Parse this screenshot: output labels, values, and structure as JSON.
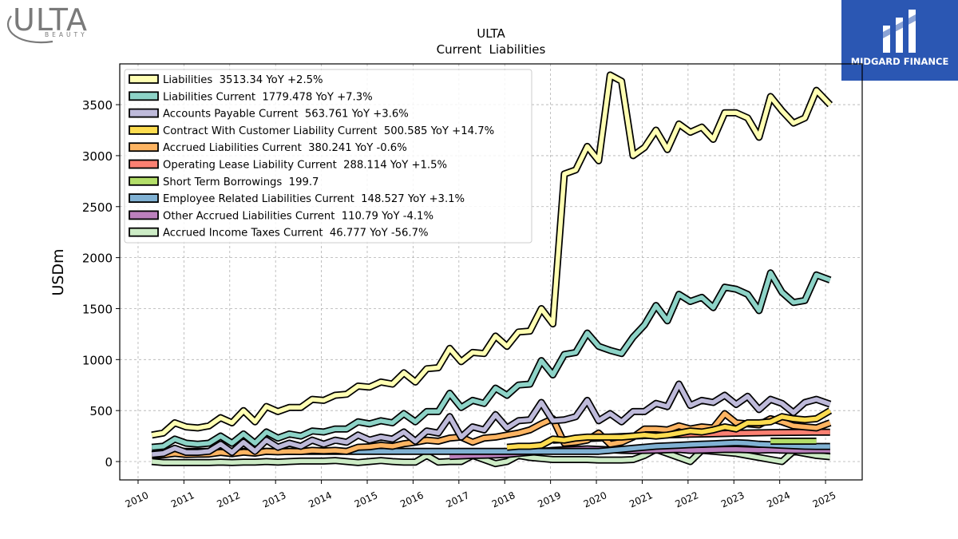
{
  "logos": {
    "company_name": "ULTA",
    "company_sub": "BEAUTY",
    "brand_name": "MIDGARD FINANCE"
  },
  "colors": {
    "background": "#ffffff",
    "grid": "#b0b0b0",
    "brand_blue": "#2b57b3"
  },
  "chart_data": {
    "type": "line",
    "title": "ULTA",
    "subtitle": "Current  Liabilities",
    "ylabel": "USDm",
    "xlabel": "",
    "ylim": [
      -180,
      3900
    ],
    "xlim": [
      2009.6,
      2025.8
    ],
    "yticks": [
      0,
      500,
      1000,
      1500,
      2000,
      2500,
      3000,
      3500
    ],
    "xticks": [
      2010,
      2011,
      2012,
      2013,
      2014,
      2015,
      2016,
      2017,
      2018,
      2019,
      2020,
      2021,
      2022,
      2023,
      2024,
      2025
    ],
    "grid": true,
    "legend_position": "top-left",
    "series": [
      {
        "name": "Liabilities  3513.34 YoY +2.5%",
        "color": "#ffffb3",
        "x": [
          2010.3,
          2010.55,
          2010.8,
          2011.05,
          2011.3,
          2011.55,
          2011.8,
          2012.05,
          2012.3,
          2012.55,
          2012.8,
          2013.05,
          2013.3,
          2013.55,
          2013.8,
          2014.05,
          2014.3,
          2014.55,
          2014.8,
          2015.05,
          2015.3,
          2015.55,
          2015.8,
          2016.05,
          2016.3,
          2016.55,
          2016.8,
          2017.05,
          2017.3,
          2017.55,
          2017.8,
          2018.05,
          2018.3,
          2018.55,
          2018.8,
          2019.05,
          2019.3,
          2019.55,
          2019.8,
          2020.05,
          2020.3,
          2020.55,
          2020.8,
          2021.05,
          2021.3,
          2021.55,
          2021.8,
          2022.05,
          2022.3,
          2022.55,
          2022.8,
          2023.05,
          2023.3,
          2023.55,
          2023.8,
          2024.05,
          2024.3,
          2024.55,
          2024.8,
          2025.1
        ],
        "values": [
          260,
          280,
          380,
          340,
          330,
          350,
          430,
          380,
          500,
          390,
          540,
          490,
          530,
          530,
          610,
          600,
          650,
          660,
          740,
          730,
          780,
          760,
          870,
          780,
          910,
          920,
          1110,
          980,
          1070,
          1060,
          1230,
          1130,
          1270,
          1280,
          1500,
          1350,
          2820,
          2860,
          3090,
          2950,
          3790,
          3730,
          3000,
          3080,
          3250,
          3060,
          3310,
          3230,
          3280,
          3160,
          3420,
          3420,
          3370,
          3180,
          3580,
          3440,
          3320,
          3370,
          3640,
          3500
        ]
      },
      {
        "name": "Liabilities Current  1779.478 YoY +7.3%",
        "color": "#8dd3c7",
        "x": [
          2010.3,
          2010.55,
          2010.8,
          2011.05,
          2011.3,
          2011.55,
          2011.8,
          2012.05,
          2012.3,
          2012.55,
          2012.8,
          2013.05,
          2013.3,
          2013.55,
          2013.8,
          2014.05,
          2014.3,
          2014.55,
          2014.8,
          2015.05,
          2015.3,
          2015.55,
          2015.8,
          2016.05,
          2016.3,
          2016.55,
          2016.8,
          2017.05,
          2017.3,
          2017.55,
          2017.8,
          2018.05,
          2018.3,
          2018.55,
          2018.8,
          2019.05,
          2019.3,
          2019.55,
          2019.8,
          2020.05,
          2020.3,
          2020.55,
          2020.8,
          2021.05,
          2021.3,
          2021.55,
          2021.8,
          2022.05,
          2022.3,
          2022.55,
          2022.8,
          2023.05,
          2023.3,
          2023.55,
          2023.8,
          2024.05,
          2024.3,
          2024.55,
          2024.8,
          2025.1
        ],
        "values": [
          140,
          150,
          220,
          180,
          170,
          180,
          250,
          180,
          270,
          180,
          290,
          230,
          270,
          250,
          300,
          290,
          320,
          320,
          390,
          370,
          400,
          380,
          470,
          390,
          490,
          490,
          670,
          530,
          600,
          570,
          720,
          650,
          750,
          760,
          990,
          850,
          1050,
          1070,
          1260,
          1130,
          1090,
          1060,
          1220,
          1340,
          1530,
          1380,
          1640,
          1570,
          1610,
          1510,
          1710,
          1690,
          1640,
          1480,
          1850,
          1660,
          1560,
          1580,
          1830,
          1780
        ]
      },
      {
        "name": "Accounts Payable Current  563.761 YoY +3.6%",
        "color": "#bebada",
        "x": [
          2010.3,
          2010.55,
          2010.8,
          2011.05,
          2011.3,
          2011.55,
          2011.8,
          2012.05,
          2012.3,
          2012.55,
          2012.8,
          2013.05,
          2013.3,
          2013.55,
          2013.8,
          2014.05,
          2014.3,
          2014.55,
          2014.8,
          2015.05,
          2015.3,
          2015.55,
          2015.8,
          2016.05,
          2016.3,
          2016.55,
          2016.8,
          2017.05,
          2017.3,
          2017.55,
          2017.8,
          2018.05,
          2018.3,
          2018.55,
          2018.8,
          2019.05,
          2019.3,
          2019.55,
          2019.8,
          2020.05,
          2020.3,
          2020.55,
          2020.8,
          2021.05,
          2021.3,
          2021.55,
          2021.8,
          2022.05,
          2022.3,
          2022.55,
          2022.8,
          2023.05,
          2023.3,
          2023.55,
          2023.8,
          2024.05,
          2024.3,
          2024.55,
          2024.8,
          2025.1
        ],
        "values": [
          70,
          80,
          130,
          90,
          90,
          100,
          170,
          90,
          190,
          100,
          210,
          140,
          180,
          150,
          210,
          170,
          210,
          190,
          260,
          210,
          240,
          220,
          290,
          200,
          300,
          280,
          440,
          240,
          340,
          310,
          460,
          330,
          400,
          410,
          580,
          400,
          410,
          440,
          600,
          400,
          470,
          390,
          490,
          490,
          570,
          540,
          760,
          550,
          600,
          580,
          650,
          560,
          640,
          510,
          610,
          570,
          480,
          580,
          610,
          563
        ]
      },
      {
        "name": "Contract With Customer Liability Current  500.585 YoY +14.7%",
        "color": "#fddc50",
        "x": [
          2018.05,
          2018.3,
          2018.55,
          2018.8,
          2019.05,
          2019.3,
          2019.55,
          2019.8,
          2020.05,
          2020.3,
          2020.55,
          2020.8,
          2021.05,
          2021.3,
          2021.55,
          2021.8,
          2022.05,
          2022.3,
          2022.55,
          2022.8,
          2023.05,
          2023.3,
          2023.55,
          2023.8,
          2024.05,
          2024.3,
          2024.55,
          2024.8,
          2025.1
        ],
        "values": [
          140,
          150,
          150,
          160,
          220,
          210,
          230,
          240,
          240,
          240,
          240,
          250,
          260,
          250,
          260,
          280,
          300,
          290,
          310,
          340,
          320,
          380,
          380,
          390,
          440,
          420,
          410,
          420,
          500
        ]
      },
      {
        "name": "Accrued Liabilities Current  380.241 YoY -0.6%",
        "color": "#fdb462",
        "x": [
          2010.3,
          2010.55,
          2010.8,
          2011.05,
          2011.3,
          2011.55,
          2011.8,
          2012.05,
          2012.3,
          2012.55,
          2012.8,
          2013.05,
          2013.3,
          2013.55,
          2013.8,
          2014.05,
          2014.3,
          2014.55,
          2014.8,
          2015.05,
          2015.3,
          2015.55,
          2015.8,
          2016.05,
          2016.3,
          2016.55,
          2016.8,
          2017.05,
          2017.3,
          2017.55,
          2017.8,
          2018.05,
          2018.3,
          2018.55,
          2018.8,
          2019.05,
          2019.3,
          2019.55,
          2019.8,
          2020.05,
          2020.3,
          2020.55,
          2020.8,
          2021.05,
          2021.3,
          2021.55,
          2021.8,
          2022.05,
          2022.3,
          2022.55,
          2022.8,
          2023.05,
          2023.3,
          2023.55,
          2023.8,
          2024.05,
          2024.3,
          2024.55,
          2024.8,
          2025.1
        ],
        "values": [
          60,
          65,
          80,
          70,
          72,
          74,
          90,
          78,
          92,
          82,
          100,
          95,
          100,
          98,
          110,
          105,
          110,
          100,
          140,
          145,
          160,
          150,
          175,
          190,
          210,
          200,
          230,
          240,
          190,
          230,
          240,
          260,
          280,
          310,
          370,
          420,
          180,
          190,
          210,
          280,
          170,
          190,
          240,
          320,
          320,
          310,
          350,
          320,
          340,
          330,
          470,
          380,
          370,
          360,
          420,
          390,
          350,
          340,
          330,
          380
        ]
      },
      {
        "name": "Operating Lease Liability Current  288.114 YoY +1.5%",
        "color": "#fb8072",
        "x": [
          2019.05,
          2019.3,
          2019.55,
          2019.8,
          2020.05,
          2020.3,
          2020.55,
          2020.8,
          2021.05,
          2021.3,
          2021.55,
          2021.8,
          2022.05,
          2022.3,
          2022.55,
          2022.8,
          2023.05,
          2023.3,
          2023.55,
          2023.8,
          2024.05,
          2024.3,
          2024.55,
          2024.8,
          2025.1
        ],
        "values": [
          210,
          215,
          220,
          225,
          230,
          240,
          245,
          250,
          255,
          260,
          262,
          265,
          268,
          270,
          272,
          275,
          278,
          280,
          282,
          284,
          285,
          286,
          287,
          288,
          288
        ]
      },
      {
        "name": "Short Term Borrowings  199.7",
        "color": "#b3de69",
        "x": [
          2023.8,
          2024.05,
          2024.3,
          2024.55,
          2024.8
        ],
        "values": [
          200,
          200,
          200,
          200,
          200
        ]
      },
      {
        "name": "Employee Related Liabilities Current  148.527 YoY +3.1%",
        "color": "#80b1d3",
        "x": [
          2010.3,
          2010.55,
          2010.8,
          2011.05,
          2011.3,
          2011.55,
          2011.8,
          2012.05,
          2012.3,
          2012.55,
          2012.8,
          2013.05,
          2013.3,
          2013.55,
          2013.8,
          2014.05,
          2014.3,
          2014.55,
          2014.8,
          2015.05,
          2015.3,
          2015.55,
          2015.8,
          2016.05,
          2016.3,
          2016.55,
          2016.8,
          2017.05,
          2017.3,
          2017.55,
          2017.8,
          2018.05,
          2018.3,
          2018.55,
          2018.8,
          2019.05,
          2019.3,
          2019.55,
          2019.8,
          2020.05,
          2020.3,
          2020.55,
          2020.8,
          2021.05,
          2021.3,
          2021.55,
          2021.8,
          2022.05,
          2022.3,
          2022.55,
          2022.8,
          2023.05,
          2023.3,
          2023.55,
          2023.8,
          2024.05,
          2024.3,
          2024.55,
          2024.8,
          2025.1
        ],
        "values": [
          100,
          100,
          100,
          100,
          100,
          100,
          100,
          100,
          100,
          100,
          100,
          100,
          100,
          100,
          100,
          100,
          100,
          100,
          100,
          100,
          100,
          100,
          100,
          100,
          100,
          100,
          100,
          100,
          100,
          100,
          100,
          100,
          100,
          100,
          100,
          100,
          100,
          100,
          100,
          100,
          110,
          120,
          130,
          140,
          150,
          155,
          160,
          165,
          170,
          175,
          180,
          185,
          180,
          170,
          165,
          160,
          155,
          150,
          148,
          148
        ]
      },
      {
        "name": "Other Accrued Liabilities Current  110.79 YoY -4.1%",
        "color": "#bc80bd",
        "x": [
          2016.8,
          2017.05,
          2017.3,
          2017.55,
          2017.8,
          2018.05,
          2018.3,
          2018.55,
          2018.8,
          2019.05,
          2019.3,
          2019.55,
          2019.8,
          2020.05,
          2020.3,
          2020.55,
          2020.8,
          2021.05,
          2021.3,
          2021.55,
          2021.8,
          2022.05,
          2022.3,
          2022.55,
          2022.8,
          2023.05,
          2023.3,
          2023.55,
          2023.8,
          2024.05,
          2024.3,
          2024.55,
          2024.8,
          2025.1
        ],
        "values": [
          50,
          55,
          60,
          62,
          65,
          70,
          80,
          90,
          100,
          110,
          115,
          120,
          125,
          120,
          115,
          110,
          108,
          110,
          112,
          115,
          118,
          110,
          112,
          115,
          118,
          120,
          115,
          112,
          115,
          112,
          110,
          110,
          111,
          110
        ]
      },
      {
        "name": "Accrued Income Taxes Current  46.777 YoY -56.7%",
        "color": "#ccebc5",
        "x": [
          2010.3,
          2010.55,
          2010.8,
          2011.05,
          2011.3,
          2011.55,
          2011.8,
          2012.05,
          2012.3,
          2012.55,
          2012.8,
          2013.05,
          2013.3,
          2013.55,
          2013.8,
          2014.05,
          2014.3,
          2014.55,
          2014.8,
          2015.05,
          2015.3,
          2015.55,
          2015.8,
          2016.05,
          2016.3,
          2016.55,
          2016.8,
          2017.05,
          2017.3,
          2017.55,
          2017.8,
          2018.05,
          2018.3,
          2018.55,
          2018.8,
          2019.05,
          2019.3,
          2019.55,
          2019.8,
          2020.05,
          2020.3,
          2020.55,
          2020.8,
          2021.05,
          2021.3,
          2021.55,
          2021.8,
          2022.05,
          2022.3,
          2022.55,
          2022.8,
          2023.05,
          2023.3,
          2023.55,
          2023.8,
          2024.05,
          2024.3,
          2024.55,
          2024.8,
          2025.1
        ],
        "values": [
          0,
          -10,
          -10,
          -10,
          -10,
          -10,
          -5,
          -10,
          -5,
          -5,
          0,
          -5,
          0,
          5,
          5,
          5,
          10,
          0,
          -10,
          0,
          10,
          0,
          -5,
          -5,
          60,
          -5,
          0,
          0,
          60,
          20,
          -20,
          0,
          60,
          40,
          30,
          20,
          20,
          20,
          20,
          15,
          15,
          15,
          20,
          60,
          120,
          80,
          40,
          0,
          110,
          100,
          90,
          80,
          60,
          40,
          20,
          0,
          100,
          80,
          60,
          47
        ]
      }
    ]
  }
}
